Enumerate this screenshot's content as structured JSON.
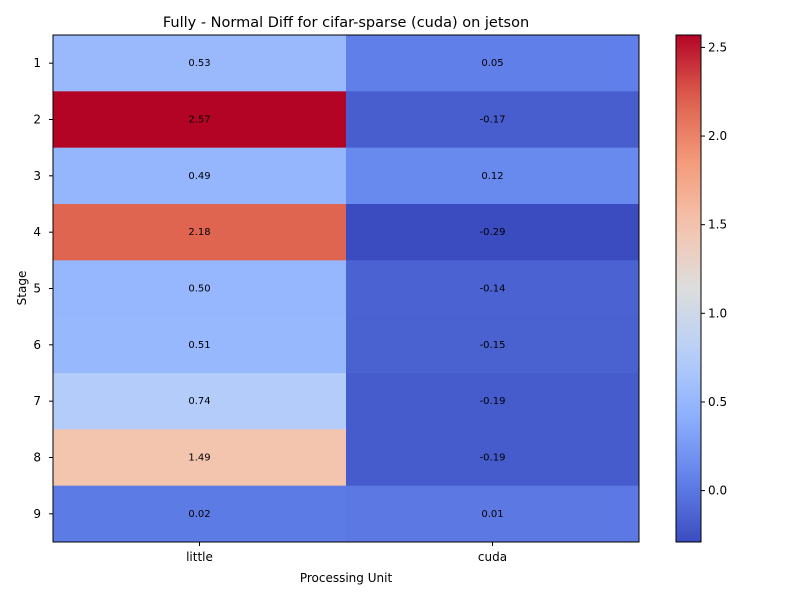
{
  "chart_data": {
    "type": "heatmap",
    "title": "Fully - Normal Diff for cifar-sparse (cuda) on jetson",
    "xlabel": "Processing Unit",
    "ylabel": "Stage",
    "columns": [
      "little",
      "cuda"
    ],
    "rows": [
      "1",
      "2",
      "3",
      "4",
      "5",
      "6",
      "7",
      "8",
      "9"
    ],
    "values": [
      [
        0.53,
        0.05
      ],
      [
        2.57,
        -0.17
      ],
      [
        0.49,
        0.12
      ],
      [
        2.18,
        -0.29
      ],
      [
        0.5,
        -0.14
      ],
      [
        0.51,
        -0.15
      ],
      [
        0.74,
        -0.19
      ],
      [
        1.49,
        -0.19
      ],
      [
        0.02,
        0.01
      ]
    ],
    "cell_labels": [
      [
        "0.53",
        "0.05"
      ],
      [
        "2.57",
        "-0.17"
      ],
      [
        "0.49",
        "0.12"
      ],
      [
        "2.18",
        "-0.29"
      ],
      [
        "0.50",
        "-0.14"
      ],
      [
        "0.51",
        "-0.15"
      ],
      [
        "0.74",
        "-0.19"
      ],
      [
        "1.49",
        "-0.19"
      ],
      [
        "0.02",
        "0.01"
      ]
    ],
    "colormap": "coolwarm",
    "color_range": [
      -0.29,
      2.57
    ],
    "colorbar_ticks": [
      "0.0",
      "0.5",
      "1.0",
      "1.5",
      "2.0",
      "2.5"
    ],
    "colorbar_tick_values": [
      0.0,
      0.5,
      1.0,
      1.5,
      2.0,
      2.5
    ],
    "grid": false
  }
}
